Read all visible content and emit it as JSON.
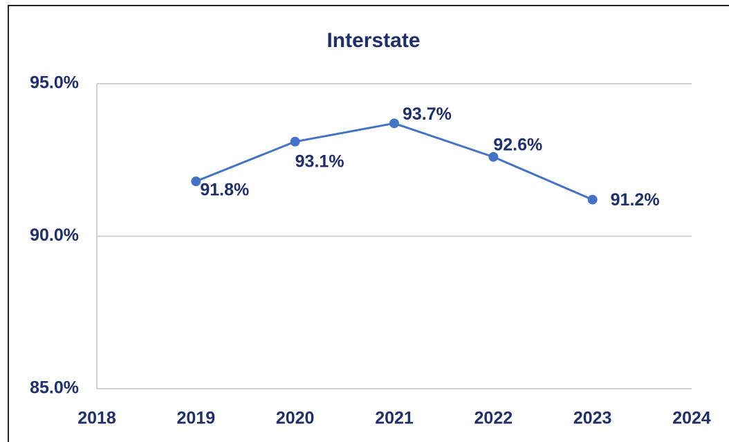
{
  "chart_data": {
    "type": "line",
    "title": "Interstate",
    "x": [
      2019,
      2020,
      2021,
      2022,
      2023
    ],
    "values": [
      91.8,
      93.1,
      93.7,
      92.6,
      91.2
    ],
    "value_labels": [
      "91.8%",
      "93.1%",
      "93.7%",
      "92.6%",
      "91.2%"
    ],
    "color": "#4472c4",
    "xlim": [
      2018,
      2024
    ],
    "xticks": [
      2018,
      2019,
      2020,
      2021,
      2022,
      2023,
      2024
    ],
    "ylim": [
      85,
      95
    ],
    "yticks": [
      {
        "value": 85,
        "label": "85.0%"
      },
      {
        "value": 90,
        "label": "90.0%"
      },
      {
        "value": 95,
        "label": "95.0%"
      }
    ],
    "grid": true
  }
}
